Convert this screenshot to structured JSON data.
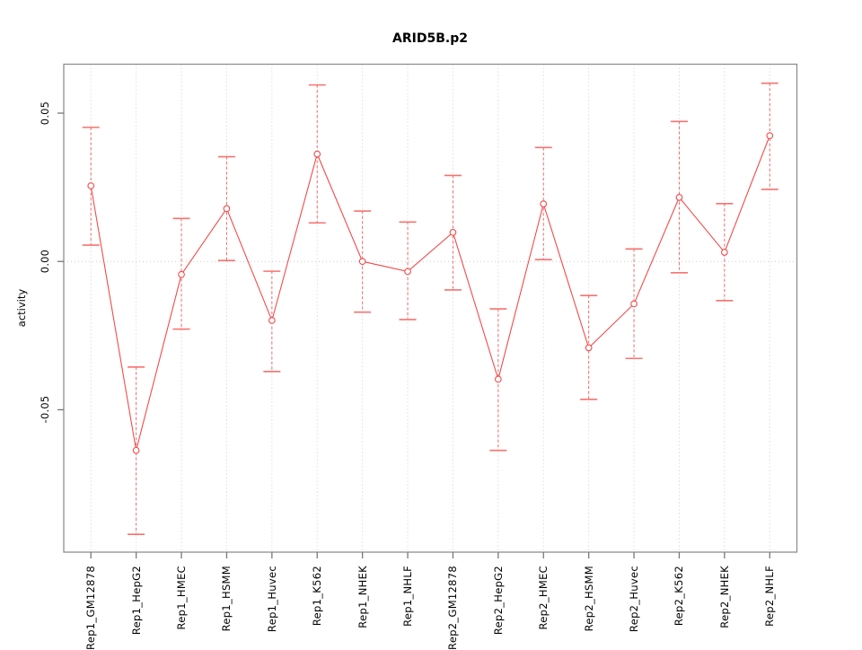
{
  "figure": {
    "background": "#ffffff"
  },
  "chart_data": {
    "type": "line",
    "title": "ARID5B.p2",
    "xlabel": "",
    "ylabel": "activity",
    "legend": "none",
    "categories": [
      "Rep1_GM12878",
      "Rep1_HepG2",
      "Rep1_HMEC",
      "Rep1_HSMM",
      "Rep1_Huvec",
      "Rep1_K562",
      "Rep1_NHEK",
      "Rep1_NHLF",
      "Rep2_GM12878",
      "Rep2_HepG2",
      "Rep2_HMEC",
      "Rep2_HSMM",
      "Rep2_Huvec",
      "Rep2_K562",
      "Rep2_NHEK",
      "Rep2_NHLF"
    ],
    "series": [
      {
        "name": "activity",
        "values": [
          0.0255,
          -0.0637,
          -0.0044,
          0.0178,
          -0.0199,
          0.0362,
          0.0,
          -0.0034,
          0.0098,
          -0.0397,
          0.0194,
          -0.0291,
          -0.0143,
          0.0216,
          0.0031,
          0.0424
        ],
        "error_high": [
          0.0452,
          -0.0356,
          0.0145,
          0.0353,
          -0.0033,
          0.0595,
          0.017,
          0.0133,
          0.029,
          -0.016,
          0.0384,
          -0.0115,
          0.0042,
          0.0472,
          0.0195,
          0.0601
        ],
        "error_low": [
          0.0055,
          -0.092,
          -0.0228,
          0.0003,
          -0.0371,
          0.013,
          -0.0171,
          -0.0196,
          -0.0096,
          -0.0637,
          0.0006,
          -0.0465,
          -0.0327,
          -0.0038,
          -0.0132,
          0.0243
        ]
      }
    ],
    "yticks": {
      "values": [
        0.05,
        0.0,
        -0.05
      ],
      "labels": [
        "0.05",
        "0.00",
        "-0.05"
      ]
    },
    "ylim": [
      -0.098,
      0.0665
    ],
    "grid": {
      "vertical": "dotted line at every category",
      "horizontal": "dotted line at y = 0 only",
      "style": "dotted"
    },
    "colors": {
      "line": "#f24b4b",
      "point": "#f24b4b",
      "point_fill": "#ffffff",
      "error_bar": "#f25050",
      "error_cap": "#f8726f",
      "grid": "#cccccc",
      "axis_box": "#8f8f8f",
      "tick": "#787878",
      "text": "#000000"
    }
  }
}
